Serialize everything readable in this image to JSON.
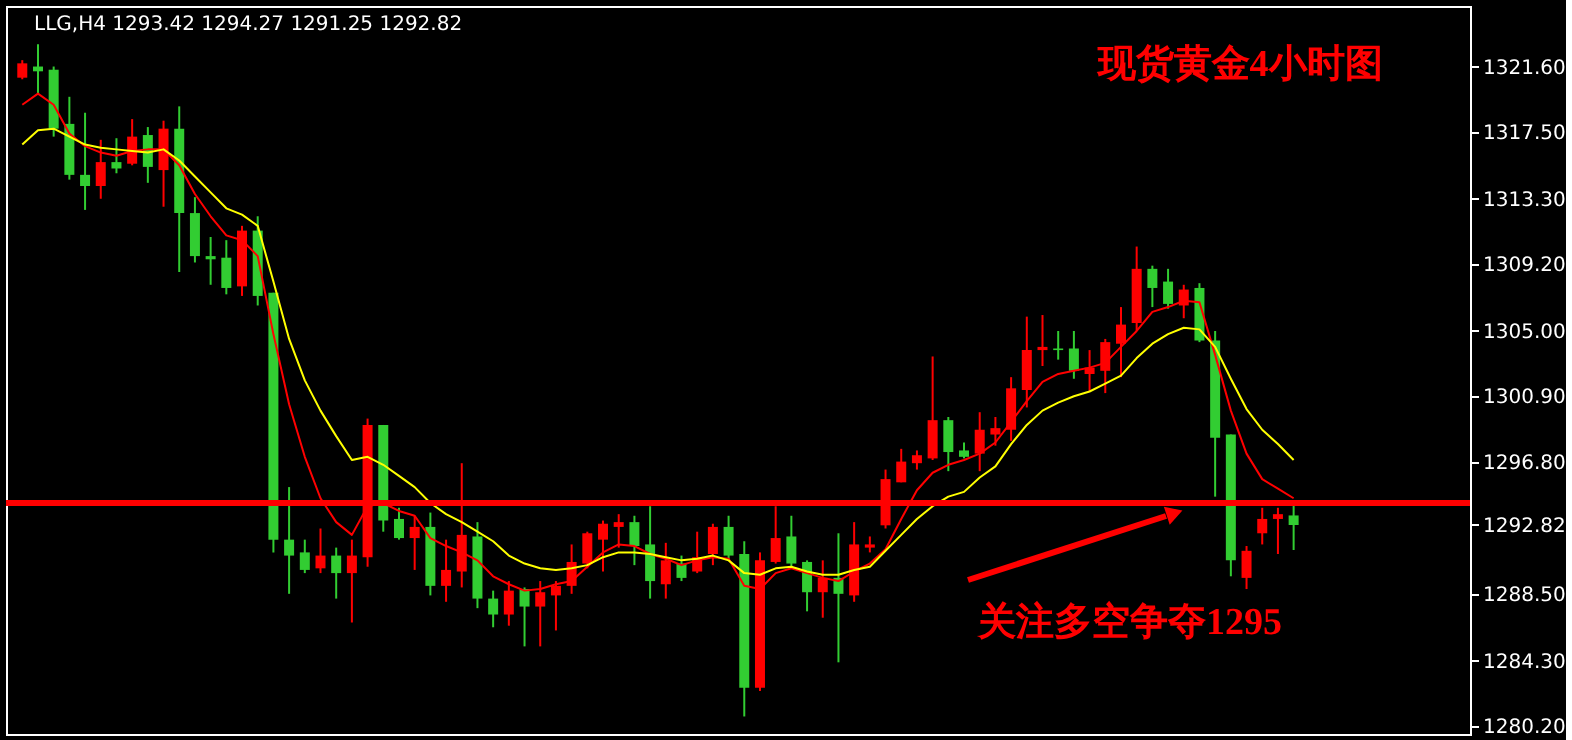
{
  "chart_data": {
    "type": "candlestick",
    "title": "现货黄金4小时图",
    "subtitle": "LLG,H4 1293.42 1294.27 1291.25 1292.82",
    "categories": [
      null,
      null,
      null,
      null,
      null,
      null,
      null,
      null,
      null,
      null,
      null,
      null,
      null,
      null,
      null,
      null,
      null,
      null,
      null,
      null,
      null,
      null,
      null,
      null,
      null,
      null,
      null,
      null,
      null,
      null,
      null,
      null,
      null,
      null,
      null,
      null,
      null,
      null,
      null,
      null,
      null,
      null,
      null,
      null,
      null,
      null,
      null,
      null,
      null,
      null,
      null,
      null,
      null,
      null,
      null,
      null,
      null,
      null,
      null,
      null,
      null,
      null,
      null,
      null,
      null,
      null,
      null,
      null,
      null,
      null,
      null,
      null,
      null,
      null,
      null,
      null,
      null,
      null,
      null,
      null,
      null,
      null
    ],
    "ohlc": [
      [
        1320.9,
        1322.0,
        1320.8,
        1321.8
      ],
      [
        1321.6,
        1323.0,
        1319.9,
        1321.3
      ],
      [
        1321.4,
        1321.6,
        1317.2,
        1317.7
      ],
      [
        1318.0,
        1319.7,
        1314.5,
        1314.8
      ],
      [
        1314.8,
        1318.7,
        1312.6,
        1314.1
      ],
      [
        1314.1,
        1317.0,
        1313.3,
        1315.6
      ],
      [
        1315.6,
        1317.1,
        1314.9,
        1315.2
      ],
      [
        1315.5,
        1318.3,
        1315.4,
        1317.2
      ],
      [
        1317.3,
        1317.8,
        1314.3,
        1315.3
      ],
      [
        1315.1,
        1318.2,
        1312.8,
        1317.7
      ],
      [
        1317.7,
        1319.1,
        1308.7,
        1312.4
      ],
      [
        1312.4,
        1313.4,
        1309.3,
        1309.7
      ],
      [
        1309.7,
        1310.9,
        1307.9,
        1309.5
      ],
      [
        1309.6,
        1310.7,
        1307.3,
        1307.7
      ],
      [
        1307.8,
        1311.6,
        1307.2,
        1311.3
      ],
      [
        1311.3,
        1312.2,
        1306.6,
        1307.2
      ],
      [
        1307.4,
        1307.4,
        1291.1,
        1291.9
      ],
      [
        1291.9,
        1295.2,
        1288.5,
        1290.9
      ],
      [
        1291.1,
        1291.9,
        1289.8,
        1290.0
      ],
      [
        1290.1,
        1292.6,
        1289.8,
        1290.9
      ],
      [
        1290.9,
        1291.4,
        1288.2,
        1289.8
      ],
      [
        1289.8,
        1291.9,
        1286.7,
        1290.9
      ],
      [
        1290.8,
        1299.5,
        1290.2,
        1299.1
      ],
      [
        1299.1,
        1299.1,
        1292.4,
        1293.1
      ],
      [
        1293.2,
        1293.9,
        1291.9,
        1292.0
      ],
      [
        1292.0,
        1293.4,
        1290.0,
        1292.7
      ],
      [
        1292.7,
        1293.6,
        1288.4,
        1289.0
      ],
      [
        1289.0,
        1291.9,
        1288.0,
        1290.0
      ],
      [
        1289.9,
        1296.7,
        1288.9,
        1292.2
      ],
      [
        1292.1,
        1293.0,
        1287.6,
        1288.2
      ],
      [
        1288.2,
        1288.7,
        1286.4,
        1287.2
      ],
      [
        1287.2,
        1289.3,
        1286.5,
        1288.7
      ],
      [
        1288.8,
        1288.9,
        1285.2,
        1287.7
      ],
      [
        1287.7,
        1289.3,
        1285.2,
        1288.6
      ],
      [
        1288.4,
        1289.3,
        1286.2,
        1289.0
      ],
      [
        1289.0,
        1291.6,
        1288.5,
        1290.5
      ],
      [
        1290.4,
        1292.4,
        1290.1,
        1292.3
      ],
      [
        1291.9,
        1293.1,
        1289.9,
        1292.9
      ],
      [
        1292.7,
        1293.5,
        1291.4,
        1293.0
      ],
      [
        1293.0,
        1293.4,
        1290.3,
        1291.5
      ],
      [
        1291.6,
        1294.0,
        1288.2,
        1289.3
      ],
      [
        1289.1,
        1291.7,
        1288.2,
        1290.6
      ],
      [
        1290.4,
        1290.9,
        1289.3,
        1289.5
      ],
      [
        1289.9,
        1292.4,
        1289.8,
        1290.8
      ],
      [
        1291.0,
        1292.9,
        1290.3,
        1292.7
      ],
      [
        1292.7,
        1293.4,
        1290.6,
        1290.9
      ],
      [
        1291.0,
        1291.8,
        1280.8,
        1282.6
      ],
      [
        1282.6,
        1291.1,
        1282.4,
        1290.6
      ],
      [
        1290.5,
        1294.0,
        1290.4,
        1292.0
      ],
      [
        1292.1,
        1293.4,
        1290.2,
        1290.4
      ],
      [
        1290.5,
        1290.6,
        1287.4,
        1288.6
      ],
      [
        1288.6,
        1290.6,
        1287.0,
        1289.5
      ],
      [
        1289.5,
        1292.3,
        1284.2,
        1288.5
      ],
      [
        1288.4,
        1293.0,
        1288.0,
        1291.6
      ],
      [
        1291.4,
        1292.1,
        1291.1,
        1291.6
      ],
      [
        1292.8,
        1296.3,
        1292.6,
        1295.7
      ],
      [
        1295.5,
        1297.6,
        1295.5,
        1296.8
      ],
      [
        1296.7,
        1297.5,
        1296.3,
        1297.2
      ],
      [
        1297.0,
        1303.4,
        1296.9,
        1299.4
      ],
      [
        1299.4,
        1299.6,
        1296.2,
        1297.4
      ],
      [
        1297.5,
        1298.0,
        1297.0,
        1297.1
      ],
      [
        1297.3,
        1299.9,
        1296.2,
        1298.8
      ],
      [
        1298.5,
        1299.6,
        1297.8,
        1298.9
      ],
      [
        1298.8,
        1302.1,
        1298.1,
        1301.4
      ],
      [
        1301.3,
        1305.9,
        1300.2,
        1303.8
      ],
      [
        1303.8,
        1306.0,
        1302.8,
        1304.0
      ],
      [
        1303.9,
        1305.0,
        1303.2,
        1303.8
      ],
      [
        1303.9,
        1305.0,
        1302.0,
        1302.5
      ],
      [
        1302.3,
        1303.8,
        1301.2,
        1302.7
      ],
      [
        1302.5,
        1304.5,
        1301.1,
        1304.3
      ],
      [
        1304.2,
        1306.5,
        1302.1,
        1305.4
      ],
      [
        1305.5,
        1310.3,
        1305.0,
        1308.9
      ],
      [
        1308.9,
        1309.1,
        1306.5,
        1307.7
      ],
      [
        1308.1,
        1308.9,
        1306.4,
        1306.7
      ],
      [
        1306.6,
        1307.9,
        1305.8,
        1307.6
      ],
      [
        1307.7,
        1308.0,
        1304.3,
        1304.4
      ],
      [
        1304.4,
        1305.0,
        1294.6,
        1298.3
      ],
      [
        1298.5,
        1298.5,
        1289.6,
        1290.6
      ],
      [
        1289.5,
        1291.5,
        1288.8,
        1291.2
      ],
      [
        1292.3,
        1293.9,
        1291.6,
        1293.2
      ],
      [
        1293.2,
        1293.9,
        1291.0,
        1293.5
      ],
      [
        1293.42,
        1294.27,
        1291.25,
        1292.82
      ]
    ],
    "colors": [
      "#ff0000",
      "#32cd32",
      "#32cd32",
      "#32cd32",
      "#32cd32",
      "#ff0000",
      "#32cd32",
      "#ff0000",
      "#32cd32",
      "#ff0000",
      "#32cd32",
      "#32cd32",
      "#32cd32",
      "#32cd32",
      "#ff0000",
      "#32cd32",
      "#32cd32",
      "#32cd32",
      "#32cd32",
      "#ff0000",
      "#32cd32",
      "#ff0000",
      "#ff0000",
      "#32cd32",
      "#32cd32",
      "#ff0000",
      "#32cd32",
      "#ff0000",
      "#ff0000",
      "#32cd32",
      "#32cd32",
      "#ff0000",
      "#32cd32",
      "#ff0000",
      "#ff0000",
      "#ff0000",
      "#ff0000",
      "#ff0000",
      "#ff0000",
      "#32cd32",
      "#32cd32",
      "#ff0000",
      "#32cd32",
      "#ff0000",
      "#ff0000",
      "#32cd32",
      "#32cd32",
      "#ff0000",
      "#ff0000",
      "#32cd32",
      "#32cd32",
      "#ff0000",
      "#32cd32",
      "#ff0000",
      "#ff0000",
      "#ff0000",
      "#ff0000",
      "#ff0000",
      "#ff0000",
      "#32cd32",
      "#32cd32",
      "#ff0000",
      "#ff0000",
      "#ff0000",
      "#ff0000",
      "#ff0000",
      "#32cd32",
      "#32cd32",
      "#ff0000",
      "#ff0000",
      "#ff0000",
      "#ff0000",
      "#32cd32",
      "#32cd32",
      "#ff0000",
      "#32cd32",
      "#32cd32",
      "#32cd32",
      "#ff0000",
      "#ff0000",
      "#ff0000",
      "#32cd32"
    ],
    "series": [
      {
        "type": "line",
        "color": "#ff0000",
        "values": [
          1319.2,
          1319.9,
          1319.2,
          1317.4,
          1316.6,
          1316.2,
          1316.0,
          1316.3,
          1316.4,
          1316.4,
          1315.4,
          1313.6,
          1312.2,
          1311.0,
          1310.7,
          1309.7,
          1304.8,
          1300.4,
          1297.1,
          1294.5,
          1293.0,
          1292.2,
          1294.0,
          1294.2,
          1293.7,
          1293.4,
          1292.0,
          1291.5,
          1291.1,
          1290.6,
          1289.6,
          1289.1,
          1288.7,
          1288.8,
          1289.1,
          1289.3,
          1290.2,
          1291.1,
          1291.6,
          1291.5,
          1291.0,
          1290.7,
          1290.3,
          1290.6,
          1290.8,
          1290.7,
          1289.0,
          1288.8,
          1289.8,
          1290.1,
          1289.8,
          1289.5,
          1289.3,
          1289.9,
          1290.4,
          1291.3,
          1293.2,
          1295.0,
          1296.1,
          1296.6,
          1296.9,
          1297.3,
          1298.0,
          1299.3,
          1300.6,
          1301.8,
          1302.3,
          1302.5,
          1302.7,
          1303.0,
          1304.0,
          1305.0,
          1306.2,
          1306.5,
          1306.9,
          1306.8,
          1303.5,
          1300.0,
          1297.3,
          1295.7,
          1295.1,
          1294.5
        ]
      },
      {
        "type": "line",
        "color": "#ffff00",
        "values": [
          1316.7,
          1317.6,
          1317.7,
          1317.2,
          1316.7,
          1316.5,
          1316.4,
          1316.3,
          1316.2,
          1316.4,
          1315.7,
          1314.7,
          1313.7,
          1312.7,
          1312.3,
          1311.6,
          1308.1,
          1304.5,
          1301.9,
          1300.0,
          1298.4,
          1296.9,
          1297.1,
          1296.6,
          1295.9,
          1295.2,
          1294.2,
          1293.5,
          1293.0,
          1292.4,
          1291.8,
          1290.9,
          1290.4,
          1290.1,
          1290.0,
          1290.1,
          1290.3,
          1290.8,
          1291.1,
          1291.1,
          1291.0,
          1290.8,
          1290.6,
          1290.7,
          1290.9,
          1290.6,
          1289.8,
          1289.7,
          1290.1,
          1290.2,
          1289.9,
          1289.7,
          1289.7,
          1290.0,
          1290.2,
          1291.2,
          1292.2,
          1293.2,
          1294.0,
          1294.6,
          1294.9,
          1295.8,
          1296.5,
          1297.9,
          1299.1,
          1300.0,
          1300.5,
          1300.9,
          1301.2,
          1301.7,
          1302.2,
          1303.3,
          1304.2,
          1304.8,
          1305.2,
          1305.1,
          1304.0,
          1302.0,
          1300.1,
          1298.8,
          1297.9,
          1296.9
        ]
      }
    ],
    "ylim": [
      1279.7,
      1325.4
    ],
    "yticks": [
      {
        "value": 1321.6,
        "label": "1321.60"
      },
      {
        "value": 1317.5,
        "label": "1317.50"
      },
      {
        "value": 1313.3,
        "label": "1313.30"
      },
      {
        "value": 1309.2,
        "label": "1309.20"
      },
      {
        "value": 1305.0,
        "label": "1305.00"
      },
      {
        "value": 1300.9,
        "label": "1300.90"
      },
      {
        "value": 1296.8,
        "label": "1296.80"
      },
      {
        "value": 1292.82,
        "label": "1292.82"
      },
      {
        "value": 1288.5,
        "label": "1288.50"
      },
      {
        "value": 1284.3,
        "label": "1284.30"
      },
      {
        "value": 1280.2,
        "label": "1280.20"
      }
    ],
    "tick_labels": "y",
    "ref_lines": [
      {
        "axis": "y",
        "value": 1294.2,
        "color": "#ff0000"
      }
    ],
    "annotations": [
      "关注多空争夺1295"
    ]
  }
}
